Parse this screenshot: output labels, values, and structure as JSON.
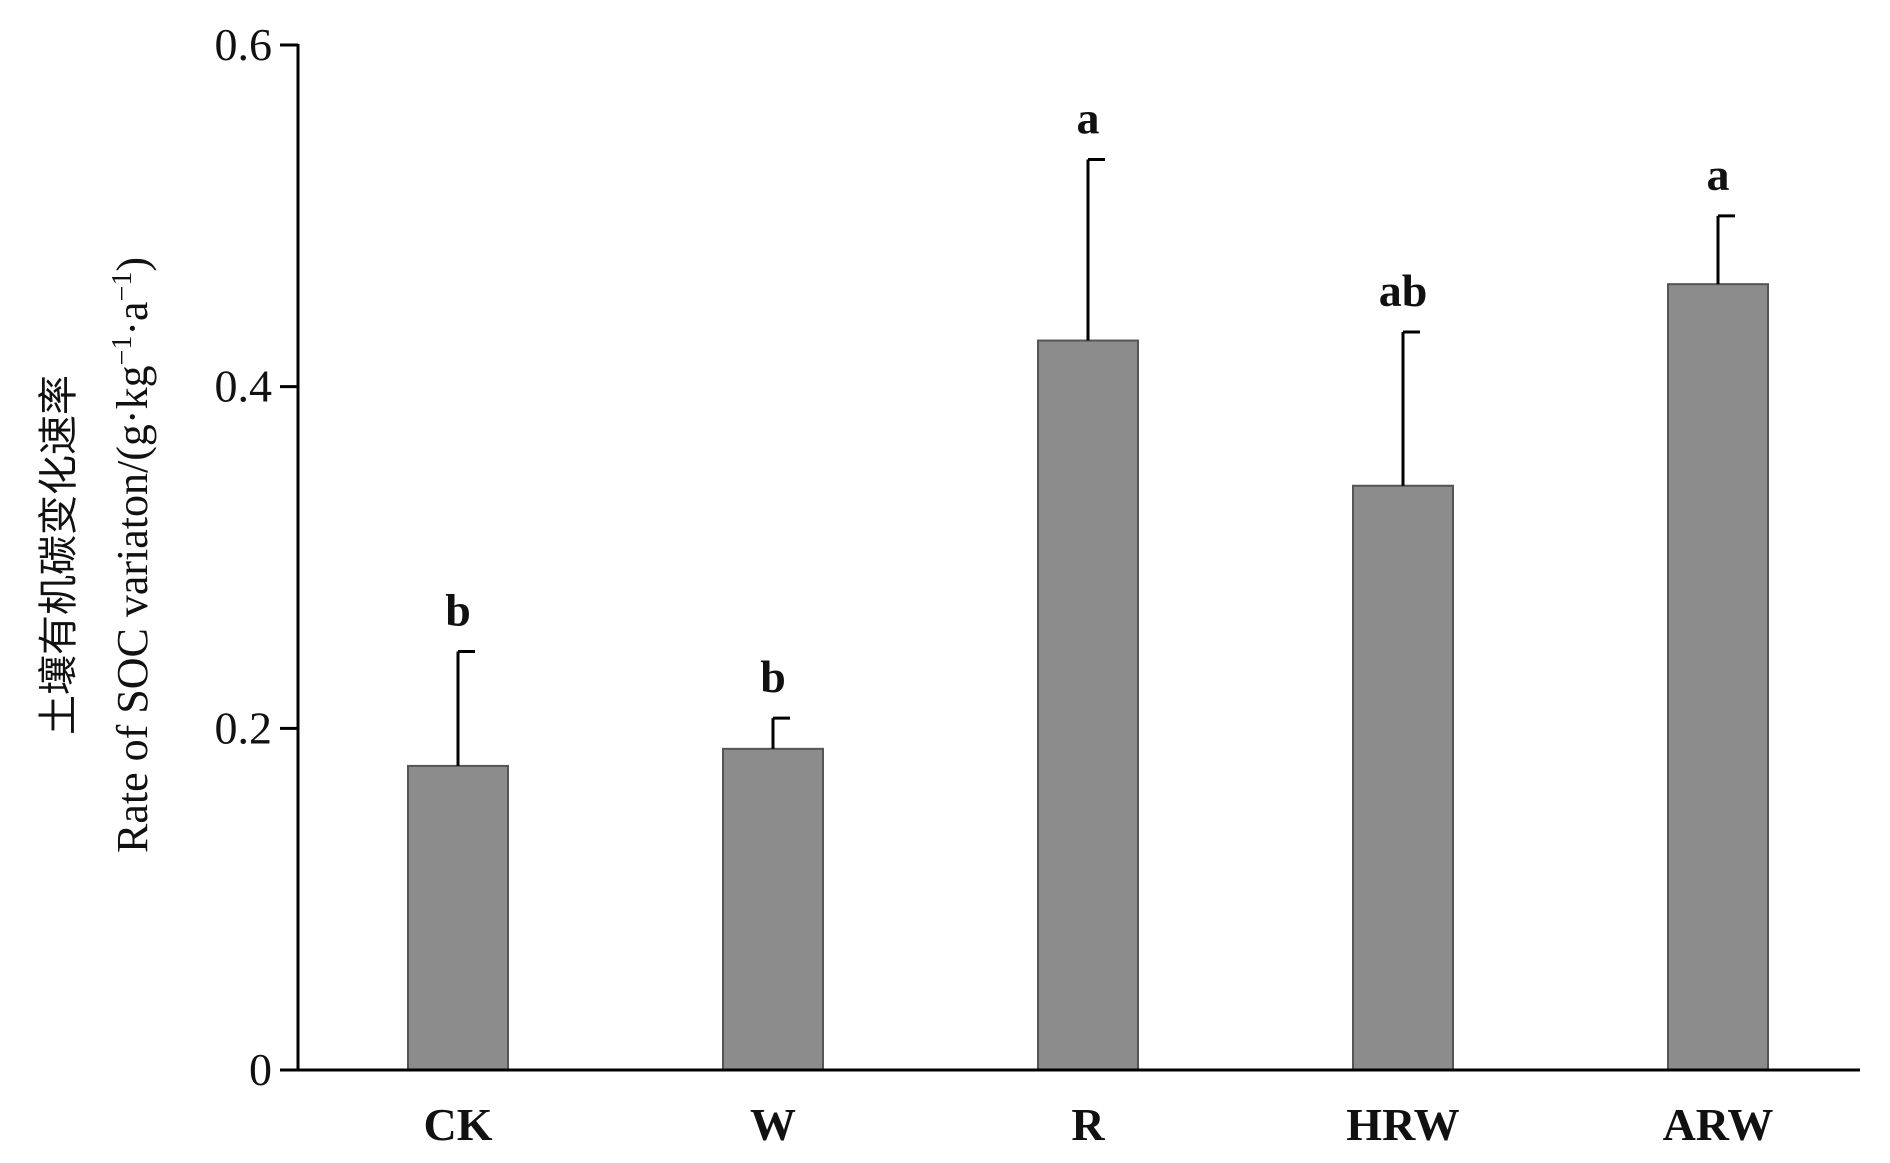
{
  "chart_data": {
    "type": "bar",
    "categories": [
      "CK",
      "W",
      "R",
      "HRW",
      "ARW"
    ],
    "values": [
      0.178,
      0.188,
      0.427,
      0.342,
      0.46
    ],
    "errors": [
      0.067,
      0.018,
      0.106,
      0.09,
      0.04
    ],
    "significance": [
      "b",
      "b",
      "a",
      "ab",
      "a"
    ],
    "title": "",
    "xlabel": "",
    "ylabel_cn": "土壤有机碳变化速率",
    "ylabel_main": "Rate of SOC variaton/(g·kg",
    "ylabel_sup1": "−1",
    "ylabel_mid": "·a",
    "ylabel_sup2": "−1",
    "ylabel_end": ")",
    "ylim": [
      0,
      0.6
    ],
    "yticks": [
      0,
      0.2,
      0.4,
      0.6
    ],
    "ytick_labels": [
      "0",
      "0.2",
      "0.4",
      "0.6"
    ],
    "bar_color": "#8c8c8c",
    "bar_edge_color": "#555555",
    "grid": false,
    "legend": "none"
  }
}
